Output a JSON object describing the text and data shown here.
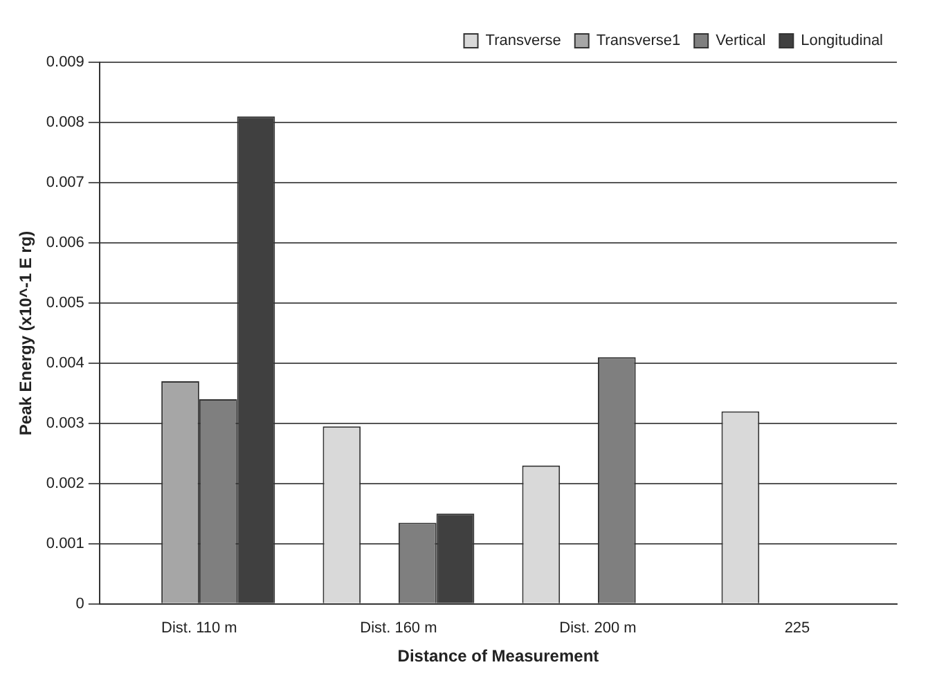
{
  "chart_data": {
    "type": "bar",
    "xlabel": "Distance of Measurement",
    "ylabel": "Peak Energy (x10^-1 E rg)",
    "categories": [
      "Dist. 110 m",
      "Dist. 160 m",
      "Dist. 200 m",
      "225"
    ],
    "series": [
      {
        "name": "Transverse",
        "color": "#d9d9d9",
        "values": [
          null,
          0.00295,
          0.0023,
          0.0032
        ]
      },
      {
        "name": "Transverse1",
        "color": "#a6a6a6",
        "values": [
          0.0037,
          null,
          null,
          null
        ]
      },
      {
        "name": "Vertical",
        "color": "#7f7f7f",
        "values": [
          0.0034,
          0.00135,
          0.0041,
          null
        ]
      },
      {
        "name": "Longitudinal",
        "color": "#404040",
        "values": [
          0.0081,
          0.0015,
          null,
          null
        ]
      }
    ],
    "ylim": [
      0,
      0.009
    ],
    "yticks": [
      0,
      0.001,
      0.002,
      0.003,
      0.004,
      0.005,
      0.006,
      0.007,
      0.008,
      0.009
    ],
    "grid": "y",
    "legend": "top right"
  }
}
